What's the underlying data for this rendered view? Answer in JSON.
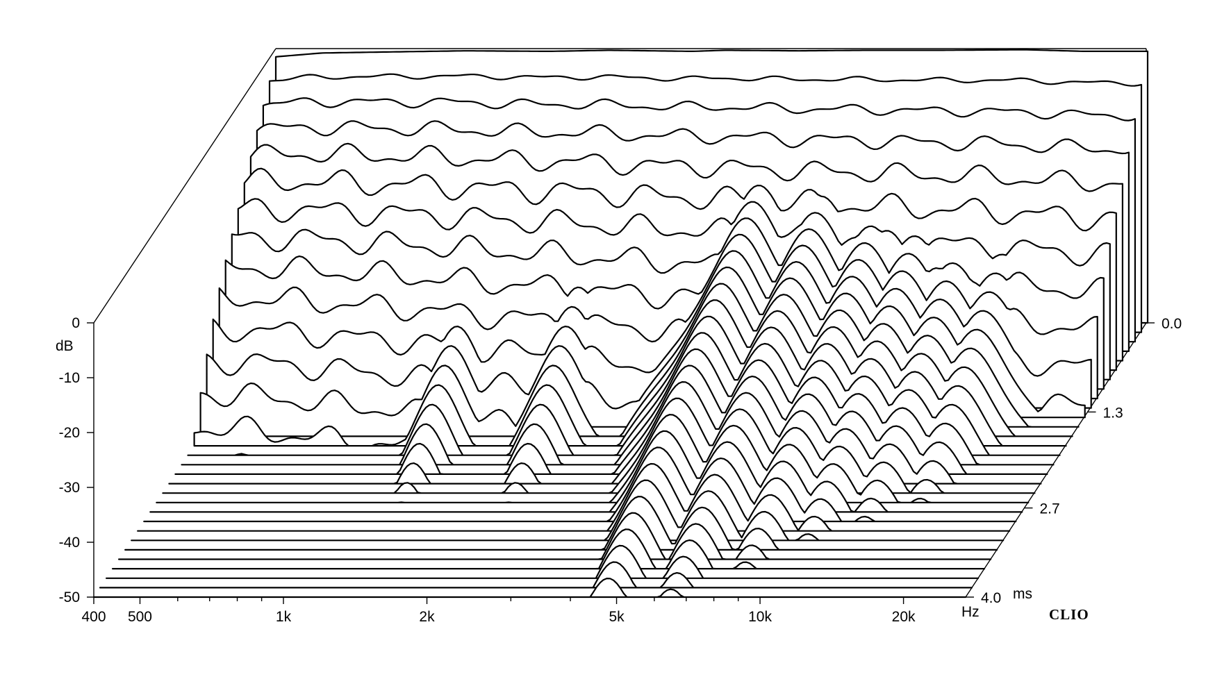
{
  "chart_data": {
    "type": "waterfall",
    "title": "",
    "brand": "CLIO",
    "y_axis": {
      "unit": "dB",
      "range": [
        -50,
        0
      ],
      "ticks": [
        {
          "value": 0,
          "label": "0"
        },
        {
          "value": -10,
          "label": "-10"
        },
        {
          "value": -20,
          "label": "-20"
        },
        {
          "value": -30,
          "label": "-30"
        },
        {
          "value": -40,
          "label": "-40"
        },
        {
          "value": -50,
          "label": "-50"
        }
      ]
    },
    "x_axis": {
      "scale": "log",
      "range": [
        400,
        27000
      ],
      "unit_label": "Hz",
      "ticks": [
        {
          "value": 400,
          "label": "400"
        },
        {
          "value": 500,
          "label": "500"
        },
        {
          "value": 1000,
          "label": "1k"
        },
        {
          "value": 2000,
          "label": "2k"
        },
        {
          "value": 5000,
          "label": "5k"
        },
        {
          "value": 10000,
          "label": "10k"
        },
        {
          "value": 20000,
          "label": "20k"
        }
      ],
      "minor_ticks": [
        600,
        700,
        800,
        900,
        3000,
        4000,
        6000,
        7000,
        8000,
        9000
      ]
    },
    "z_axis": {
      "unit_label": "ms",
      "range": [
        0.0,
        4.0
      ],
      "ticks": [
        {
          "value": 0.0,
          "label": "0.0"
        },
        {
          "value": 1.3,
          "label": "1.3"
        },
        {
          "value": 2.7,
          "label": "2.7"
        },
        {
          "value": 4.0,
          "label": "4.0"
        }
      ]
    },
    "slice_count": 30,
    "t0_response": {
      "freq_hz": [
        400,
        500,
        700,
        1000,
        1500,
        2000,
        3000,
        3500,
        5000,
        7000,
        10000,
        15000,
        20000,
        27000
      ],
      "db": [
        -1.5,
        -0.8,
        -0.6,
        -0.4,
        -0.5,
        -0.3,
        -0.5,
        -0.3,
        -0.4,
        -0.3,
        -0.3,
        -0.2,
        -0.5,
        -0.5
      ]
    },
    "decay_resonances": [
      {
        "freq_hz": 440,
        "level_db": -4,
        "decay_ms": 1.0
      },
      {
        "freq_hz": 1300,
        "level_db": -15,
        "decay_ms": 2.4
      },
      {
        "freq_hz": 2200,
        "level_db": -15,
        "decay_ms": 2.4
      },
      {
        "freq_hz": 4800,
        "level_db": -10,
        "decay_ms": 3.5
      },
      {
        "freq_hz": 6500,
        "level_db": -12,
        "decay_ms": 3.5
      },
      {
        "freq_hz": 8500,
        "level_db": -14,
        "decay_ms": 3.3
      },
      {
        "freq_hz": 10500,
        "level_db": -15,
        "decay_ms": 3.0
      },
      {
        "freq_hz": 13000,
        "level_db": -16,
        "decay_ms": 2.8
      },
      {
        "freq_hz": 16000,
        "level_db": -17,
        "decay_ms": 2.6
      }
    ],
    "floor_db": -50,
    "grid": false,
    "legend": "none"
  }
}
